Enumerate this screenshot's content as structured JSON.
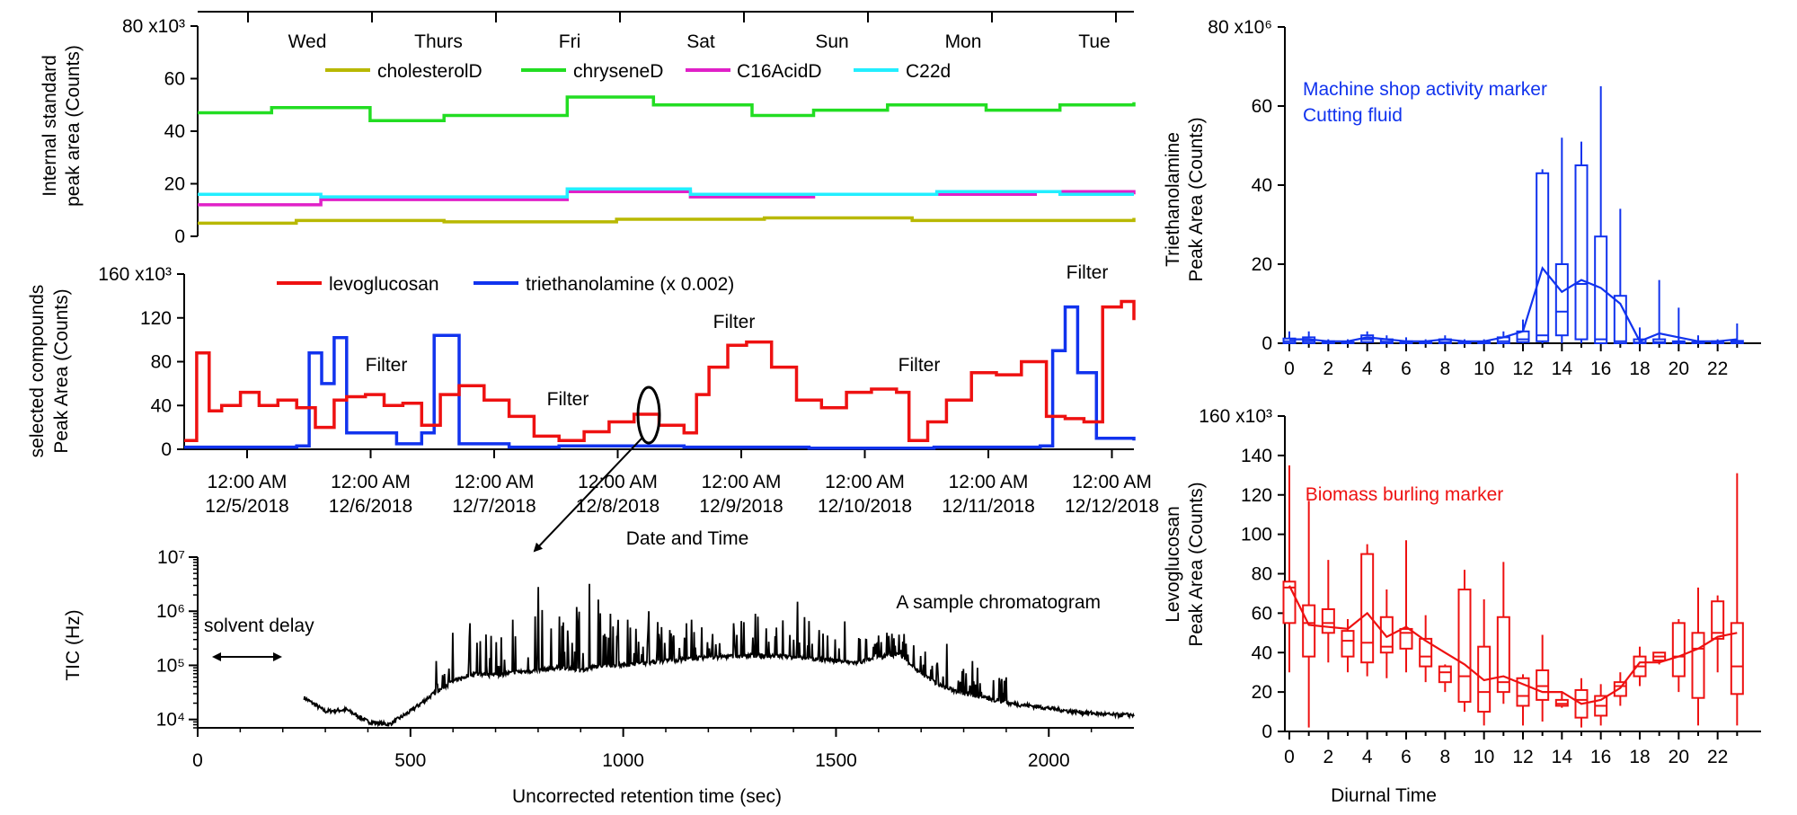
{
  "chart_data": [
    {
      "id": "internal",
      "type": "line",
      "ylabel": [
        "Internal standard",
        "peak area (Counts)"
      ],
      "y_ticks": [
        "0",
        "20",
        "40",
        "60",
        "80 x10³"
      ],
      "ylim": [
        0,
        80000
      ],
      "day_labels": [
        "Wed",
        "Thurs",
        "Fri",
        "Sat",
        "Sun",
        "Mon",
        "Tue"
      ],
      "colors": {
        "cholesterolD": "#b8b800",
        "chryseneD": "#22dd22",
        "C16AcidD": "#e020c8",
        "C22d": "#22eeff"
      },
      "series": [
        {
          "name": "cholesterolD",
          "x": [
            0.0,
            0.8,
            2.0,
            3.4,
            4.6,
            5.8,
            7.6
          ],
          "values": [
            5000,
            6000,
            5500,
            6500,
            7000,
            6000,
            7000
          ]
        },
        {
          "name": "chryseneD",
          "x": [
            0.0,
            0.6,
            1.4,
            2.0,
            3.0,
            3.7,
            4.5,
            5.0,
            5.6,
            6.4,
            7.0,
            7.6
          ],
          "values": [
            47000,
            49000,
            44000,
            46000,
            53000,
            50000,
            46000,
            48000,
            50000,
            48000,
            50000,
            51000
          ]
        },
        {
          "name": "C16AcidD",
          "x": [
            0.0,
            1.0,
            2.0,
            3.0,
            4.0,
            5.0,
            6.0,
            6.8,
            7.6
          ],
          "values": [
            12000,
            14000,
            14000,
            17000,
            15000,
            16000,
            16000,
            17000,
            16000
          ]
        },
        {
          "name": "C22d",
          "x": [
            0.0,
            1.0,
            2.0,
            3.0,
            4.0,
            5.0,
            6.0,
            7.0,
            7.6
          ],
          "values": [
            16000,
            15000,
            15000,
            18000,
            16000,
            16000,
            17000,
            16000,
            16000
          ]
        }
      ]
    },
    {
      "id": "selected",
      "type": "line",
      "ylabel": [
        "selected compounds",
        "Peak Area (Counts)"
      ],
      "y_ticks": [
        "0",
        "40",
        "80",
        "120",
        "160 x10³"
      ],
      "ylim": [
        0,
        160000
      ],
      "x_ticks": [
        [
          "12:00 AM",
          "12/5/2018"
        ],
        [
          "12:00 AM",
          "12/6/2018"
        ],
        [
          "12:00 AM",
          "12/7/2018"
        ],
        [
          "12:00 AM",
          "12/8/2018"
        ],
        [
          "12:00 AM",
          "12/9/2018"
        ],
        [
          "12:00 AM",
          "12/10/2018"
        ],
        [
          "12:00 AM",
          "12/11/2018"
        ],
        [
          "12:00 AM",
          "12/12/2018"
        ]
      ],
      "xlabel": "Date and Time",
      "annotations": [
        "Filter",
        "Filter",
        "Filter",
        "Filter",
        "Filter"
      ],
      "colors": {
        "levoglucosan": "#ee1111",
        "triethanolamine": "#1133ee"
      },
      "series": [
        {
          "name": "levoglucosan",
          "x": [
            0.0,
            0.1,
            0.2,
            0.3,
            0.45,
            0.6,
            0.75,
            0.9,
            1.05,
            1.2,
            1.3,
            1.45,
            1.6,
            1.75,
            1.9,
            2.05,
            2.2,
            2.4,
            2.6,
            2.8,
            3.0,
            3.2,
            3.4,
            3.6,
            3.8,
            4.0,
            4.1,
            4.2,
            4.35,
            4.5,
            4.7,
            4.9,
            5.1,
            5.3,
            5.5,
            5.7,
            5.8,
            5.95,
            6.1,
            6.3,
            6.5,
            6.7,
            6.9,
            7.05,
            7.2,
            7.35,
            7.5,
            7.6
          ],
          "values": [
            8000,
            88000,
            35000,
            40000,
            52000,
            40000,
            45000,
            38000,
            20000,
            45000,
            48000,
            50000,
            40000,
            42000,
            22000,
            50000,
            58000,
            45000,
            30000,
            12000,
            8000,
            16000,
            25000,
            32000,
            22000,
            15000,
            50000,
            75000,
            95000,
            98000,
            75000,
            45000,
            38000,
            52000,
            55000,
            52000,
            8000,
            25000,
            45000,
            70000,
            68000,
            80000,
            30000,
            28000,
            25000,
            130000,
            135000,
            118000
          ]
        },
        {
          "name": "triethanolamine (x 0.002)",
          "x": [
            0.0,
            0.5,
            0.9,
            1.0,
            1.1,
            1.2,
            1.3,
            1.7,
            1.9,
            2.0,
            2.2,
            2.6,
            3.0,
            4.0,
            5.0,
            6.0,
            6.85,
            6.95,
            7.05,
            7.15,
            7.3,
            7.6
          ],
          "values": [
            2000,
            2000,
            3000,
            88000,
            60000,
            102000,
            15000,
            5000,
            15000,
            104000,
            5000,
            2000,
            3000,
            2000,
            1000,
            2000,
            3000,
            90000,
            130000,
            70000,
            10000,
            8000
          ]
        }
      ]
    },
    {
      "id": "tic",
      "type": "line",
      "ylabel": "TIC (Hz)",
      "xlabel": "Uncorrected retention time (sec)",
      "scale": "log",
      "y_ticks": [
        "10⁴",
        "10⁵",
        "10⁶",
        "10⁷"
      ],
      "ylim": [
        7000,
        10000000
      ],
      "x_ticks": [
        0,
        500,
        1000,
        1500,
        2000
      ],
      "xlim": [
        0,
        2200
      ],
      "annotations": [
        "solvent delay",
        "A sample chromatogram"
      ],
      "color": "#000000",
      "series": [
        {
          "name": "",
          "x": [
            250,
            300,
            350,
            400,
            450,
            500,
            550,
            600,
            650,
            700,
            750,
            800,
            850,
            900,
            950,
            1000,
            1050,
            1100,
            1150,
            1200,
            1250,
            1300,
            1350,
            1400,
            1450,
            1500,
            1550,
            1600,
            1650,
            1700,
            1750,
            1800,
            1850,
            1900,
            1950,
            2000,
            2050,
            2100,
            2150,
            2200
          ],
          "values": [
            25000,
            14000,
            15000,
            9000,
            8000,
            14000,
            28000,
            50000,
            70000,
            65000,
            75000,
            80000,
            90000,
            80000,
            100000,
            100000,
            110000,
            120000,
            130000,
            140000,
            145000,
            150000,
            150000,
            140000,
            130000,
            120000,
            110000,
            140000,
            160000,
            70000,
            40000,
            30000,
            25000,
            20000,
            18000,
            16000,
            14000,
            13000,
            12000,
            12000
          ]
        },
        {
          "name": "",
          "x": [
            560,
            600,
            640,
            690,
            740,
            800,
            850,
            890,
            920,
            970,
            1010,
            1060,
            1110,
            1160,
            1210,
            1260,
            1310,
            1360,
            1410,
            1460,
            1520,
            1570,
            1620,
            1660,
            1710,
            1760,
            1820,
            1900
          ],
          "values": [
            120000,
            400000,
            600000,
            350000,
            700000,
            2800000,
            800000,
            1200000,
            3200000,
            900000,
            700000,
            1000000,
            450000,
            700000,
            380000,
            600000,
            900000,
            500000,
            1500000,
            450000,
            650000,
            300000,
            400000,
            380000,
            180000,
            250000,
            120000,
            60000
          ]
        }
      ]
    },
    {
      "id": "triethanolamine_diurnal",
      "type": "box",
      "ylabel": [
        "Triethanolamine",
        "Peak Area (Counts)"
      ],
      "y_ticks": [
        "0",
        "20",
        "40",
        "60",
        "80 x10⁶"
      ],
      "ylim": [
        0,
        80000000
      ],
      "x_ticks": [
        "0",
        "2",
        "4",
        "6",
        "8",
        "10",
        "12",
        "14",
        "16",
        "18",
        "20",
        "22"
      ],
      "annotations": [
        "Machine shop activity marker",
        "Cutting fluid"
      ],
      "color": "#1133ee",
      "hours": [
        0,
        1,
        2,
        3,
        4,
        5,
        6,
        7,
        8,
        9,
        10,
        11,
        12,
        13,
        14,
        15,
        16,
        17,
        18,
        19,
        20,
        21,
        22,
        23
      ],
      "box_q1": [
        0,
        0,
        0,
        0,
        0.3,
        0,
        0,
        0,
        0,
        0,
        0,
        0,
        0.3,
        0.5,
        2,
        1,
        0,
        0,
        0,
        0,
        0,
        0,
        0,
        0
      ],
      "box_q3": [
        1.2,
        1.5,
        0.5,
        0.3,
        2,
        1,
        0.5,
        0.3,
        1,
        0.3,
        0.3,
        1.5,
        3,
        43,
        20,
        45,
        27,
        12,
        1,
        1,
        0.5,
        0.3,
        0.5,
        0.6
      ],
      "medians": [
        0.5,
        0.5,
        0.2,
        0.1,
        1,
        0.4,
        0.2,
        0.1,
        0.3,
        0.1,
        0.1,
        0.5,
        1,
        2,
        8,
        15,
        1,
        0.5,
        0.2,
        0.3,
        0.2,
        0.1,
        0.2,
        0.2
      ],
      "whisker_low": [
        0,
        0,
        0,
        0,
        0,
        0,
        0,
        0,
        0,
        0,
        0,
        0,
        0,
        0,
        0,
        0,
        0,
        0,
        0,
        0,
        0,
        0,
        0,
        0
      ],
      "whisker_high": [
        3,
        3,
        1,
        1,
        3,
        2,
        1.5,
        1,
        2,
        1,
        1,
        3,
        6,
        44,
        52,
        51,
        65,
        34,
        4,
        16,
        9,
        2,
        1,
        5
      ],
      "means": [
        1,
        1,
        0.5,
        0.5,
        1.5,
        1,
        0.5,
        0.5,
        1,
        0.5,
        0.5,
        1.5,
        3,
        19,
        13,
        16,
        14,
        10,
        0.5,
        2.5,
        1.5,
        0.5,
        0.5,
        1
      ]
    },
    {
      "id": "levoglucosan_diurnal",
      "type": "box",
      "ylabel": [
        "Levoglucosan",
        "Peak Area (Counts)"
      ],
      "y_ticks": [
        "0",
        "20",
        "40",
        "60",
        "80",
        "100",
        "120",
        "140",
        "160 x10³"
      ],
      "ylim": [
        0,
        160000
      ],
      "x_ticks": [
        "0",
        "2",
        "4",
        "6",
        "8",
        "10",
        "12",
        "14",
        "16",
        "18",
        "20",
        "22"
      ],
      "xlabel": "Diurnal Time",
      "annotations": [
        "Biomass burling marker"
      ],
      "color": "#ee1111",
      "hours": [
        0,
        1,
        2,
        3,
        4,
        5,
        6,
        7,
        8,
        9,
        10,
        11,
        12,
        13,
        14,
        15,
        16,
        17,
        18,
        19,
        20,
        21,
        22,
        23
      ],
      "box_q1": [
        55,
        38,
        50,
        38,
        35,
        40,
        42,
        33,
        25,
        15,
        10,
        20,
        13,
        16,
        13,
        7,
        8,
        18,
        28,
        36,
        28,
        17,
        47,
        19
      ],
      "box_q3": [
        76,
        64,
        62,
        51,
        90,
        58,
        52,
        47,
        33,
        72,
        43,
        58,
        27,
        31,
        16,
        21,
        18,
        25,
        38,
        40,
        55,
        50,
        66,
        55
      ],
      "medians": [
        73,
        55,
        55,
        46,
        45,
        43,
        50,
        38,
        30,
        28,
        20,
        25,
        18,
        23,
        14,
        16,
        13,
        23,
        33,
        38,
        38,
        42,
        50,
        33
      ],
      "whisker_low": [
        30,
        2,
        35,
        30,
        28,
        27,
        30,
        25,
        20,
        10,
        3,
        14,
        3,
        5,
        12,
        2,
        3,
        13,
        23,
        34,
        20,
        3,
        30,
        3
      ],
      "whisker_high": [
        135,
        117,
        87,
        57,
        95,
        72,
        97,
        59,
        34,
        82,
        67,
        86,
        29,
        49,
        20,
        27,
        24,
        30,
        43,
        40,
        57,
        73,
        69,
        131
      ],
      "means": [
        74,
        54,
        53,
        52,
        60,
        48,
        53,
        46,
        40,
        34,
        26,
        28,
        24,
        20,
        20,
        14,
        16,
        22,
        35,
        35,
        38,
        42,
        48,
        50
      ]
    }
  ]
}
